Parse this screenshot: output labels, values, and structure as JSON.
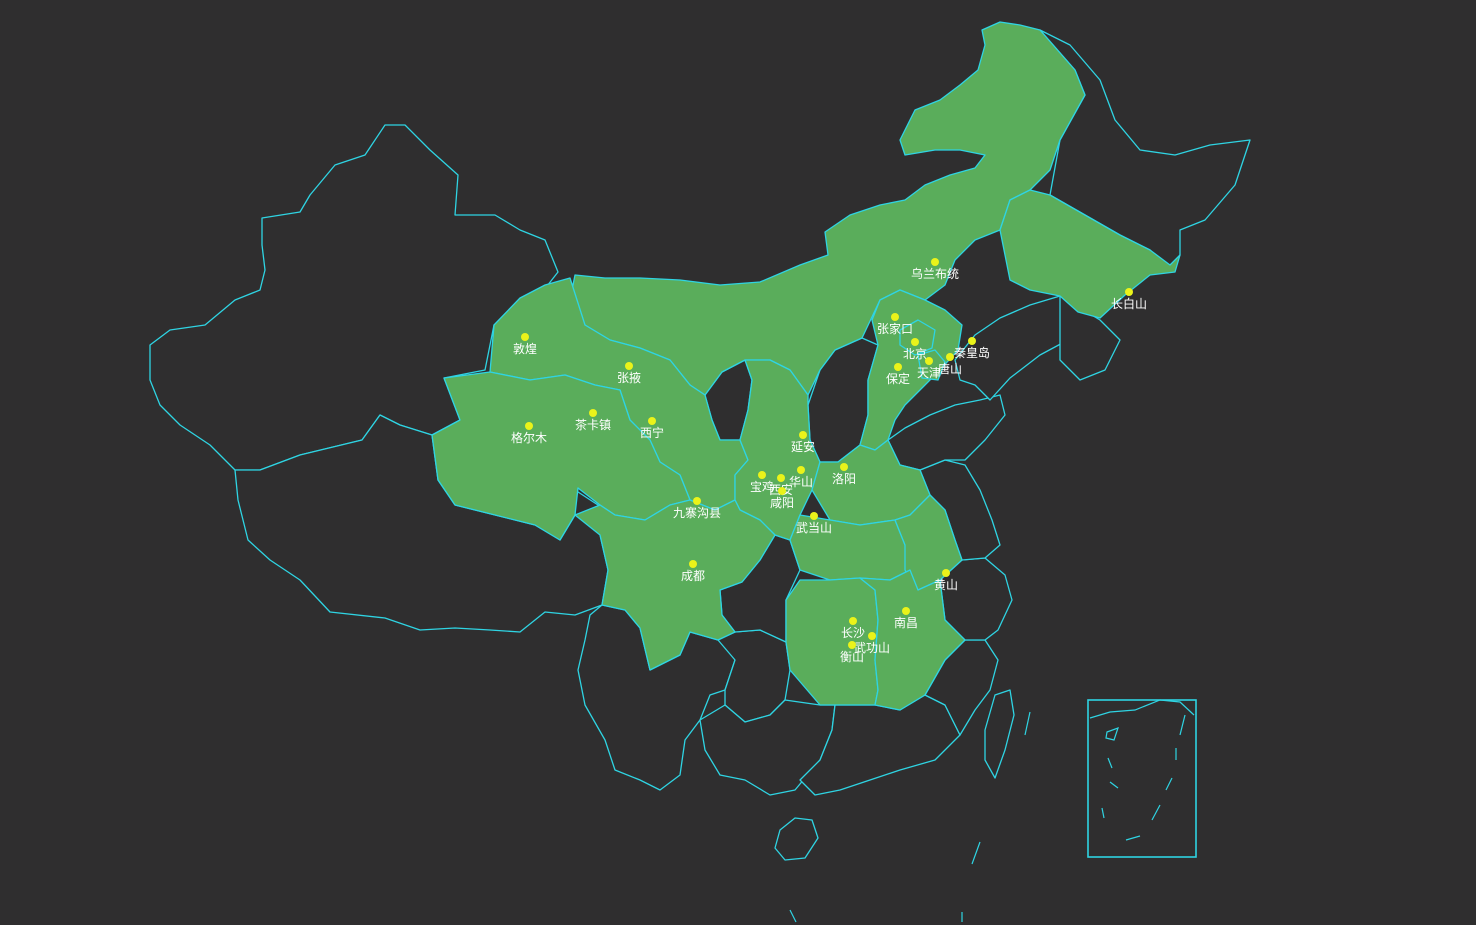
{
  "map": {
    "background_color": "#2f2e2f",
    "border_color": "#2fd4e3",
    "visited_fill_color": "#5aad5b",
    "unvisited_fill_color": "#2f2e2f",
    "marker_color": "#eaf31a",
    "label_color": "#ffffff",
    "inset": "South China Sea islands",
    "cities": [
      {
        "name": "乌兰布统"
      },
      {
        "name": "长白山"
      },
      {
        "name": "张家口"
      },
      {
        "name": "北京"
      },
      {
        "name": "秦皇岛"
      },
      {
        "name": "天津"
      },
      {
        "name": "唐山"
      },
      {
        "name": "保定"
      },
      {
        "name": "敦煌"
      },
      {
        "name": "张掖"
      },
      {
        "name": "格尔木"
      },
      {
        "name": "茶卡镇"
      },
      {
        "name": "西宁"
      },
      {
        "name": "延安"
      },
      {
        "name": "洛阳"
      },
      {
        "name": "宝鸡"
      },
      {
        "name": "西安"
      },
      {
        "name": "华山"
      },
      {
        "name": "咸阳"
      },
      {
        "name": "九寨沟县"
      },
      {
        "name": "武当山"
      },
      {
        "name": "成都"
      },
      {
        "name": "黄山"
      },
      {
        "name": "南昌"
      },
      {
        "name": "长沙"
      },
      {
        "name": "武功山"
      },
      {
        "name": "衡山"
      }
    ]
  }
}
